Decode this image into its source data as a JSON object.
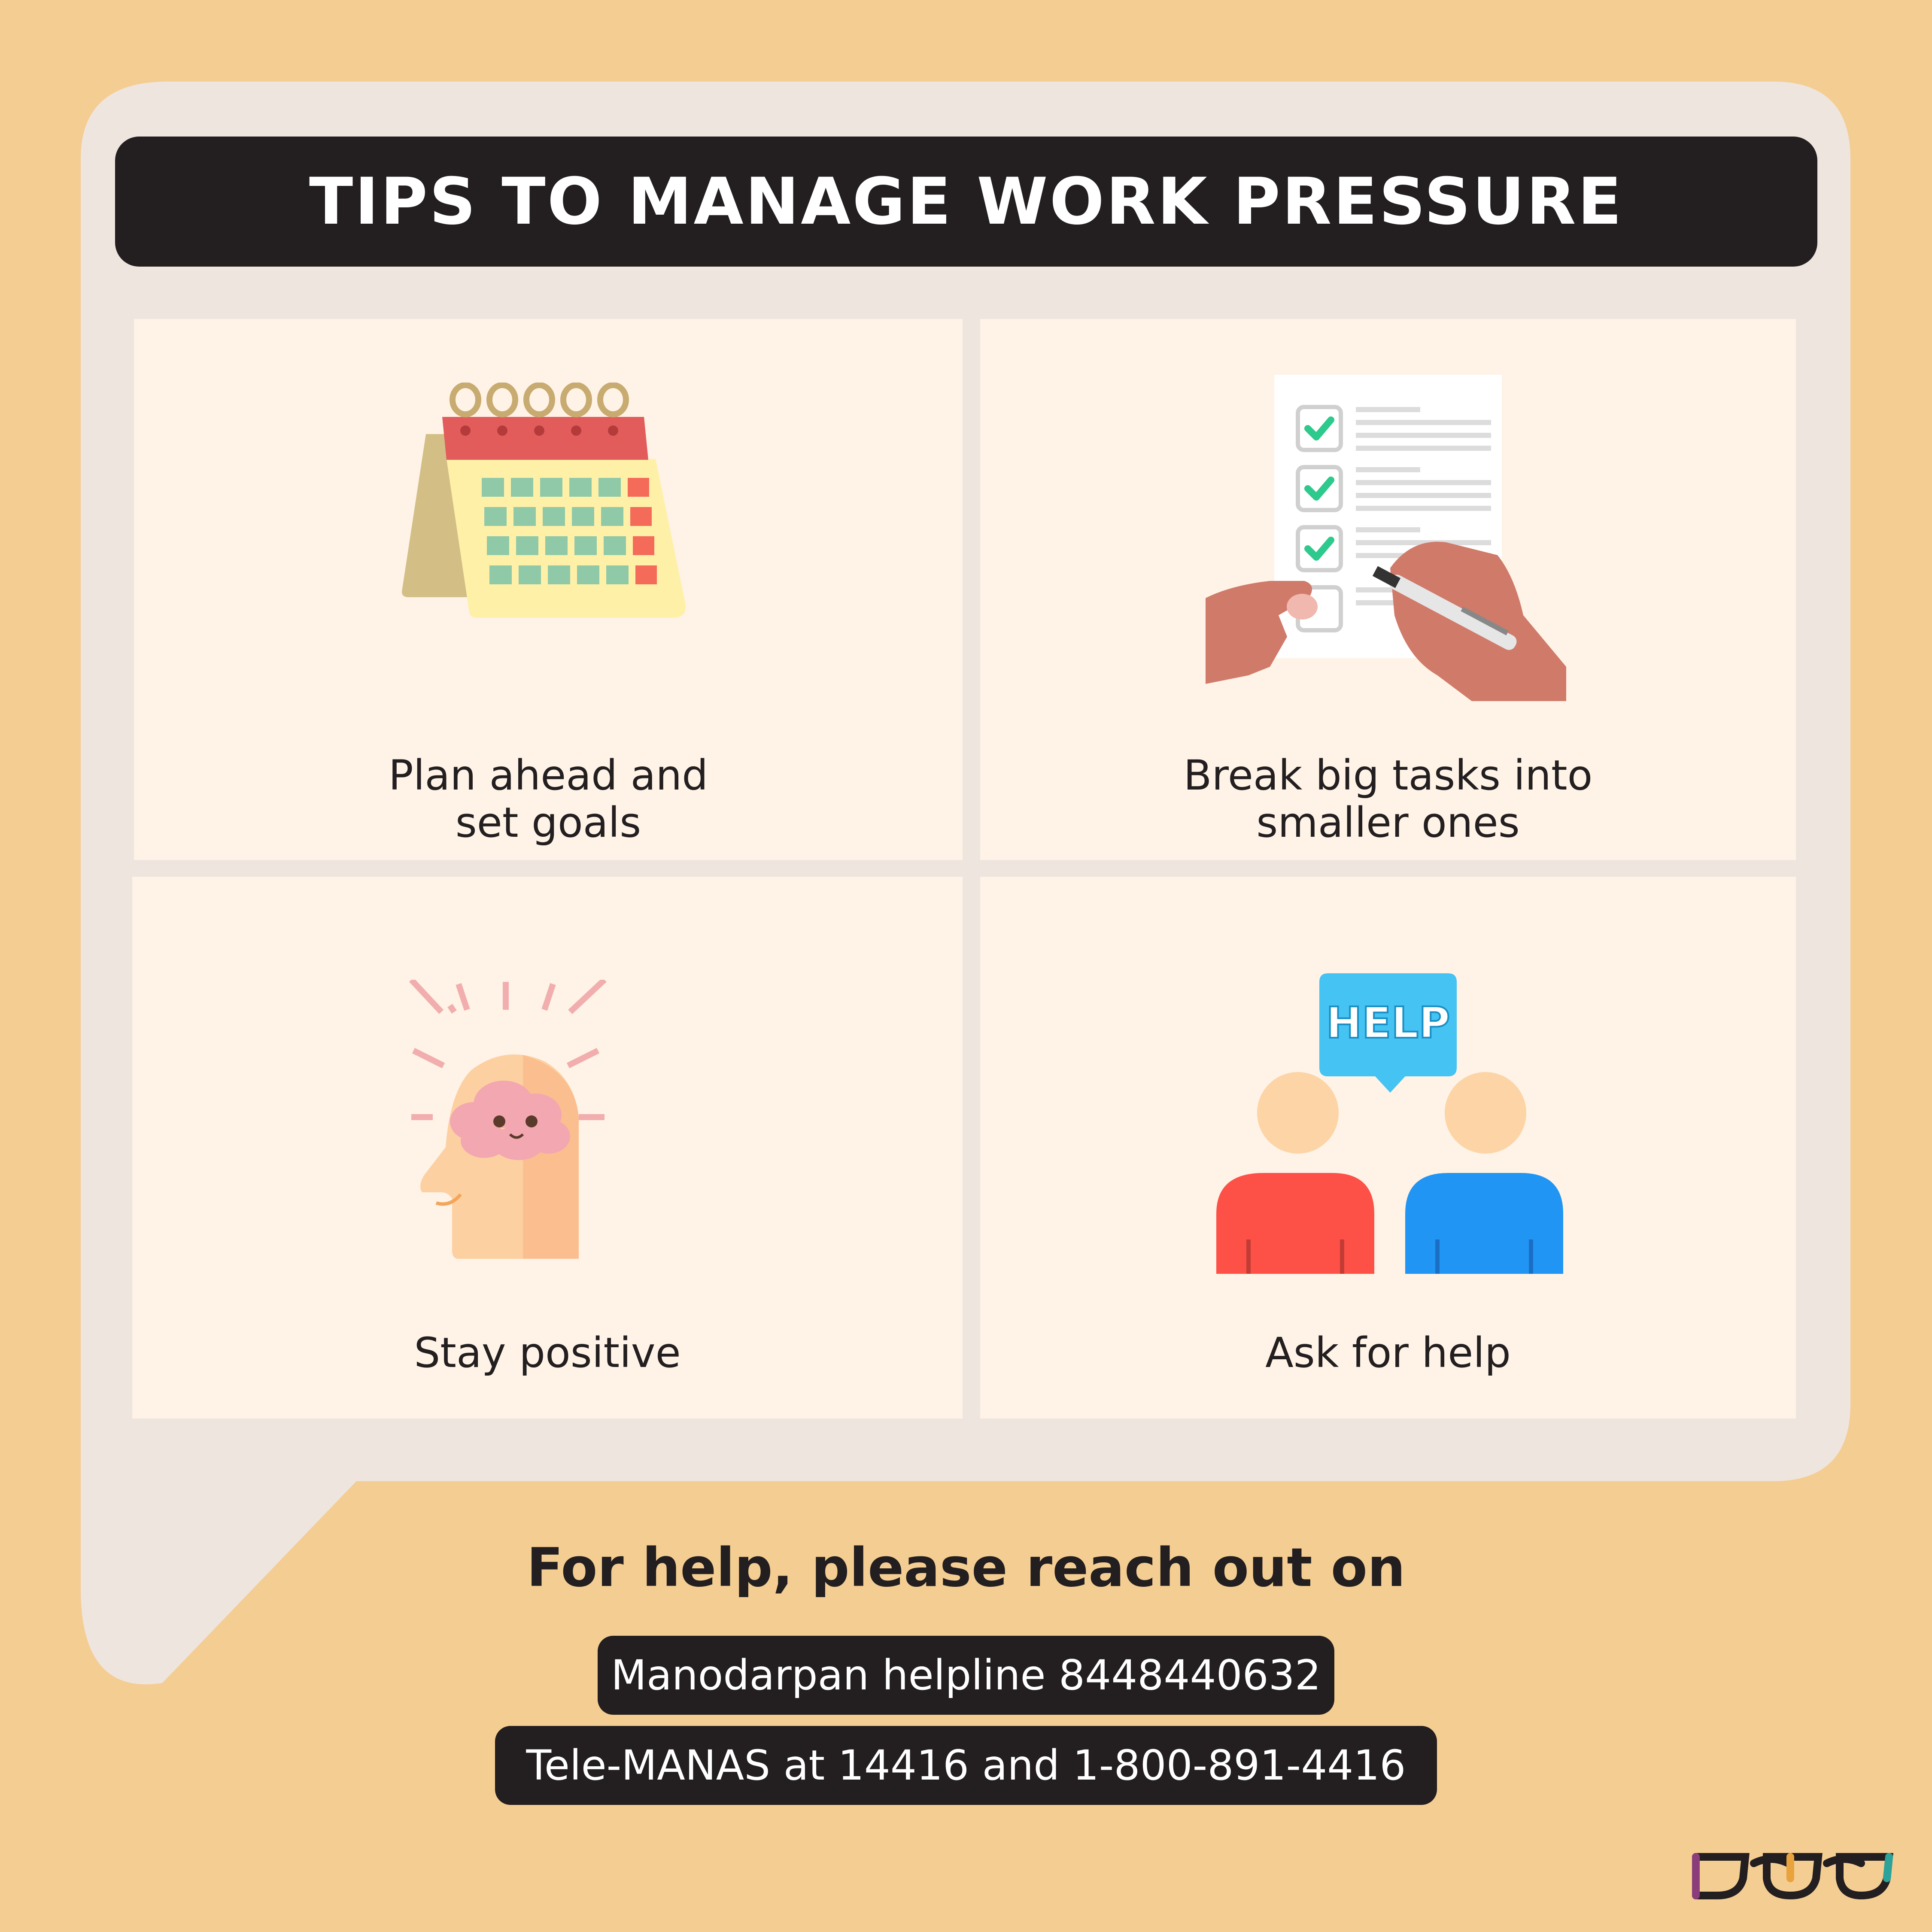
{
  "title": "TIPS TO MANAGE WORK PRESSURE",
  "tips": [
    {
      "icon": "calendar-icon",
      "line1": "Plan ahead and",
      "line2": "set goals"
    },
    {
      "icon": "checklist-icon",
      "line1": "Break big tasks into",
      "line2": "smaller ones"
    },
    {
      "icon": "positive-mind-icon",
      "line1": "Stay positive"
    },
    {
      "icon": "help-people-icon",
      "line1": "Ask for help",
      "badge": "HELP"
    }
  ],
  "help": {
    "heading": "For help, please reach out on",
    "contacts": [
      "Manodarpan helpline 8448440632",
      "Tele-MANAS at 14416 and 1-800-891-4416"
    ]
  },
  "colors": {
    "background": "#f4cd92",
    "bubble": "#efe5df",
    "tile": "#fef3e6",
    "dark": "#231f20"
  }
}
